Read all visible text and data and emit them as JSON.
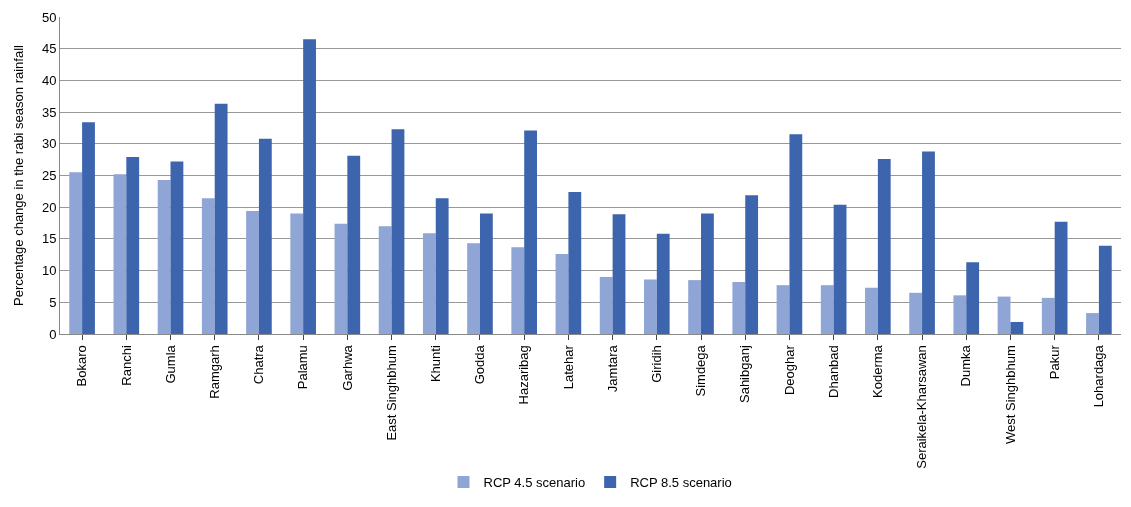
{
  "chart_data": {
    "type": "bar",
    "ylabel": "Percentage change in the rabi season rainfall",
    "categories": [
      "Bokaro",
      "Ranchi",
      "Gumla",
      "Ramgarh",
      "Chatra",
      "Palamu",
      "Garhwa",
      "East Singhbhum",
      "Khunti",
      "Godda",
      "Hazaribag",
      "Latehar",
      "Jamtara",
      "Giridih",
      "Simdega",
      "Sahibganj",
      "Deoghar",
      "Dhanbad",
      "Koderma",
      "Seraikela-Kharsawan",
      "Dumka",
      "West Singhbhum",
      "Pakur",
      "Lohardaga"
    ],
    "series": [
      {
        "name": "RCP 4.5 scenario",
        "color": "#8fa5d6",
        "values": [
          25.5,
          25.2,
          24.3,
          21.4,
          19.4,
          19.0,
          17.4,
          17.0,
          15.9,
          14.3,
          13.7,
          12.6,
          9.0,
          8.6,
          8.5,
          8.2,
          7.7,
          7.7,
          7.3,
          6.5,
          6.1,
          5.9,
          5.7,
          3.3
        ]
      },
      {
        "name": "RCP 8.5 scenario",
        "color": "#3c65ae",
        "values": [
          33.4,
          27.9,
          27.2,
          36.3,
          30.8,
          46.5,
          28.1,
          32.3,
          21.4,
          19.0,
          32.1,
          22.4,
          18.9,
          15.8,
          19.0,
          21.9,
          31.5,
          20.4,
          27.6,
          28.8,
          11.3,
          1.9,
          17.7,
          13.9
        ]
      }
    ],
    "ylim": [
      0,
      50
    ],
    "yticks": [
      0,
      5,
      10,
      15,
      20,
      25,
      30,
      35,
      40,
      45,
      50
    ],
    "grid": "y",
    "legend": "bottom"
  }
}
